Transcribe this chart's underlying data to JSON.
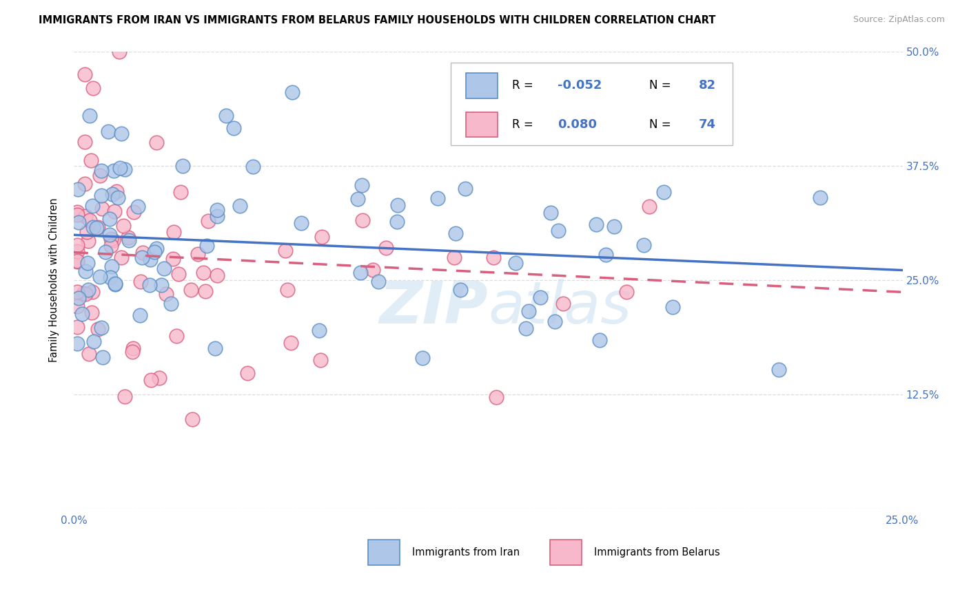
{
  "title": "IMMIGRANTS FROM IRAN VS IMMIGRANTS FROM BELARUS FAMILY HOUSEHOLDS WITH CHILDREN CORRELATION CHART",
  "source": "Source: ZipAtlas.com",
  "ylabel": "Family Households with Children",
  "xlim": [
    0.0,
    0.25
  ],
  "ylim": [
    0.0,
    0.5
  ],
  "iran_R": "-0.052",
  "iran_N": "82",
  "belarus_R": "0.080",
  "belarus_N": "74",
  "iran_color": "#aec6e8",
  "iran_edge_color": "#5b8ec4",
  "iran_line_color": "#4472c4",
  "belarus_color": "#f7b8cb",
  "belarus_edge_color": "#d95f7e",
  "belarus_line_color": "#d95f7e",
  "background_color": "#ffffff",
  "grid_color": "#dddddd",
  "watermark": "ZIPatlas",
  "watermark_color": "#c8dff0",
  "tick_color": "#4472c4"
}
